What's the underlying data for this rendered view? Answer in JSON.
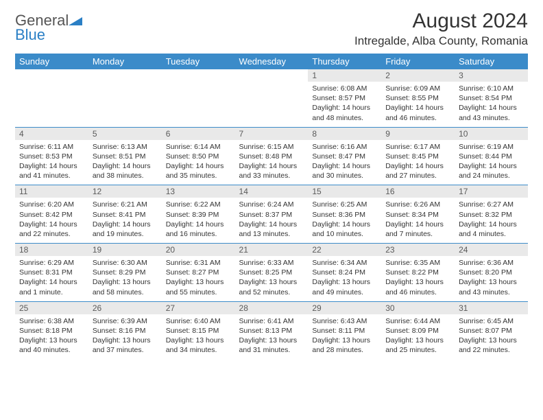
{
  "logo": {
    "word1": "General",
    "word2": "Blue"
  },
  "title": "August 2024",
  "location": "Intregalde, Alba County, Romania",
  "colors": {
    "header_bg": "#3b8bc9",
    "header_text": "#ffffff",
    "daynum_bg": "#e9e9e9",
    "rule": "#3b8bc9",
    "text": "#333333",
    "logo_blue": "#2a7fc5"
  },
  "day_headers": [
    "Sunday",
    "Monday",
    "Tuesday",
    "Wednesday",
    "Thursday",
    "Friday",
    "Saturday"
  ],
  "weeks": [
    [
      {
        "empty": true
      },
      {
        "empty": true
      },
      {
        "empty": true
      },
      {
        "empty": true
      },
      {
        "num": "1",
        "sunrise": "Sunrise: 6:08 AM",
        "sunset": "Sunset: 8:57 PM",
        "daylight": "Daylight: 14 hours and 48 minutes."
      },
      {
        "num": "2",
        "sunrise": "Sunrise: 6:09 AM",
        "sunset": "Sunset: 8:55 PM",
        "daylight": "Daylight: 14 hours and 46 minutes."
      },
      {
        "num": "3",
        "sunrise": "Sunrise: 6:10 AM",
        "sunset": "Sunset: 8:54 PM",
        "daylight": "Daylight: 14 hours and 43 minutes."
      }
    ],
    [
      {
        "num": "4",
        "sunrise": "Sunrise: 6:11 AM",
        "sunset": "Sunset: 8:53 PM",
        "daylight": "Daylight: 14 hours and 41 minutes."
      },
      {
        "num": "5",
        "sunrise": "Sunrise: 6:13 AM",
        "sunset": "Sunset: 8:51 PM",
        "daylight": "Daylight: 14 hours and 38 minutes."
      },
      {
        "num": "6",
        "sunrise": "Sunrise: 6:14 AM",
        "sunset": "Sunset: 8:50 PM",
        "daylight": "Daylight: 14 hours and 35 minutes."
      },
      {
        "num": "7",
        "sunrise": "Sunrise: 6:15 AM",
        "sunset": "Sunset: 8:48 PM",
        "daylight": "Daylight: 14 hours and 33 minutes."
      },
      {
        "num": "8",
        "sunrise": "Sunrise: 6:16 AM",
        "sunset": "Sunset: 8:47 PM",
        "daylight": "Daylight: 14 hours and 30 minutes."
      },
      {
        "num": "9",
        "sunrise": "Sunrise: 6:17 AM",
        "sunset": "Sunset: 8:45 PM",
        "daylight": "Daylight: 14 hours and 27 minutes."
      },
      {
        "num": "10",
        "sunrise": "Sunrise: 6:19 AM",
        "sunset": "Sunset: 8:44 PM",
        "daylight": "Daylight: 14 hours and 24 minutes."
      }
    ],
    [
      {
        "num": "11",
        "sunrise": "Sunrise: 6:20 AM",
        "sunset": "Sunset: 8:42 PM",
        "daylight": "Daylight: 14 hours and 22 minutes."
      },
      {
        "num": "12",
        "sunrise": "Sunrise: 6:21 AM",
        "sunset": "Sunset: 8:41 PM",
        "daylight": "Daylight: 14 hours and 19 minutes."
      },
      {
        "num": "13",
        "sunrise": "Sunrise: 6:22 AM",
        "sunset": "Sunset: 8:39 PM",
        "daylight": "Daylight: 14 hours and 16 minutes."
      },
      {
        "num": "14",
        "sunrise": "Sunrise: 6:24 AM",
        "sunset": "Sunset: 8:37 PM",
        "daylight": "Daylight: 14 hours and 13 minutes."
      },
      {
        "num": "15",
        "sunrise": "Sunrise: 6:25 AM",
        "sunset": "Sunset: 8:36 PM",
        "daylight": "Daylight: 14 hours and 10 minutes."
      },
      {
        "num": "16",
        "sunrise": "Sunrise: 6:26 AM",
        "sunset": "Sunset: 8:34 PM",
        "daylight": "Daylight: 14 hours and 7 minutes."
      },
      {
        "num": "17",
        "sunrise": "Sunrise: 6:27 AM",
        "sunset": "Sunset: 8:32 PM",
        "daylight": "Daylight: 14 hours and 4 minutes."
      }
    ],
    [
      {
        "num": "18",
        "sunrise": "Sunrise: 6:29 AM",
        "sunset": "Sunset: 8:31 PM",
        "daylight": "Daylight: 14 hours and 1 minute."
      },
      {
        "num": "19",
        "sunrise": "Sunrise: 6:30 AM",
        "sunset": "Sunset: 8:29 PM",
        "daylight": "Daylight: 13 hours and 58 minutes."
      },
      {
        "num": "20",
        "sunrise": "Sunrise: 6:31 AM",
        "sunset": "Sunset: 8:27 PM",
        "daylight": "Daylight: 13 hours and 55 minutes."
      },
      {
        "num": "21",
        "sunrise": "Sunrise: 6:33 AM",
        "sunset": "Sunset: 8:25 PM",
        "daylight": "Daylight: 13 hours and 52 minutes."
      },
      {
        "num": "22",
        "sunrise": "Sunrise: 6:34 AM",
        "sunset": "Sunset: 8:24 PM",
        "daylight": "Daylight: 13 hours and 49 minutes."
      },
      {
        "num": "23",
        "sunrise": "Sunrise: 6:35 AM",
        "sunset": "Sunset: 8:22 PM",
        "daylight": "Daylight: 13 hours and 46 minutes."
      },
      {
        "num": "24",
        "sunrise": "Sunrise: 6:36 AM",
        "sunset": "Sunset: 8:20 PM",
        "daylight": "Daylight: 13 hours and 43 minutes."
      }
    ],
    [
      {
        "num": "25",
        "sunrise": "Sunrise: 6:38 AM",
        "sunset": "Sunset: 8:18 PM",
        "daylight": "Daylight: 13 hours and 40 minutes."
      },
      {
        "num": "26",
        "sunrise": "Sunrise: 6:39 AM",
        "sunset": "Sunset: 8:16 PM",
        "daylight": "Daylight: 13 hours and 37 minutes."
      },
      {
        "num": "27",
        "sunrise": "Sunrise: 6:40 AM",
        "sunset": "Sunset: 8:15 PM",
        "daylight": "Daylight: 13 hours and 34 minutes."
      },
      {
        "num": "28",
        "sunrise": "Sunrise: 6:41 AM",
        "sunset": "Sunset: 8:13 PM",
        "daylight": "Daylight: 13 hours and 31 minutes."
      },
      {
        "num": "29",
        "sunrise": "Sunrise: 6:43 AM",
        "sunset": "Sunset: 8:11 PM",
        "daylight": "Daylight: 13 hours and 28 minutes."
      },
      {
        "num": "30",
        "sunrise": "Sunrise: 6:44 AM",
        "sunset": "Sunset: 8:09 PM",
        "daylight": "Daylight: 13 hours and 25 minutes."
      },
      {
        "num": "31",
        "sunrise": "Sunrise: 6:45 AM",
        "sunset": "Sunset: 8:07 PM",
        "daylight": "Daylight: 13 hours and 22 minutes."
      }
    ]
  ]
}
